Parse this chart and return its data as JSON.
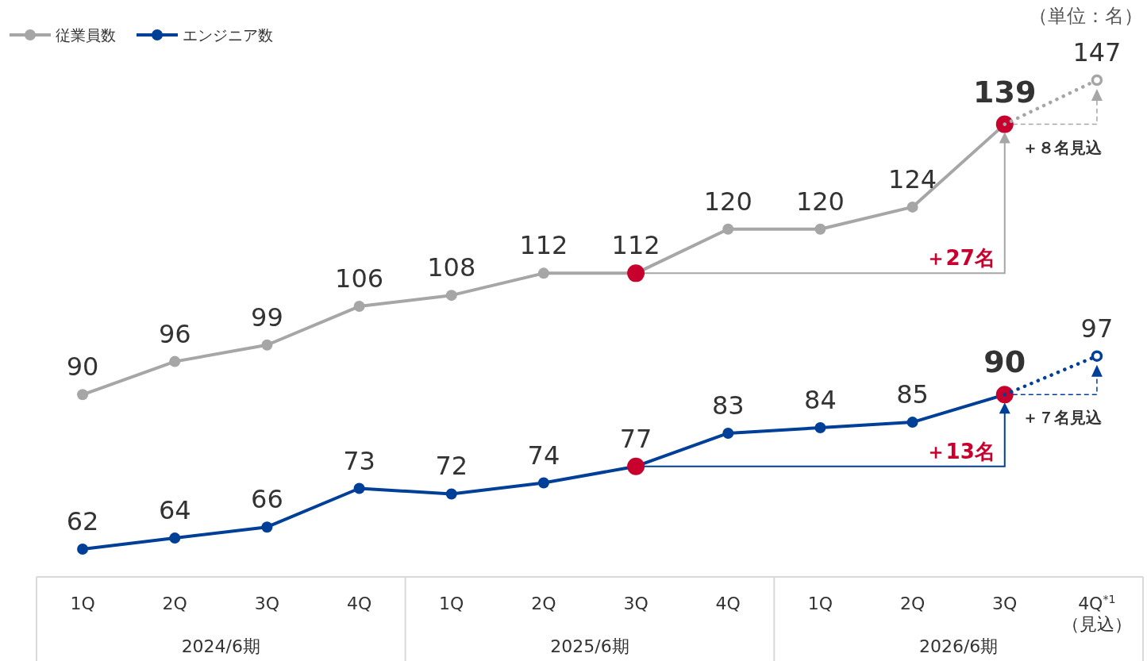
{
  "chart_data": {
    "type": "line",
    "categories": [
      "1Q",
      "2Q",
      "3Q",
      "4Q",
      "1Q",
      "2Q",
      "3Q",
      "4Q",
      "1Q",
      "2Q",
      "3Q",
      "4Q$^{*1}$\n（見込）"
    ],
    "series": [
      {
        "name": "従業員数",
        "color": "#a6a6a6",
        "values": [
          90,
          96,
          99,
          106,
          108,
          112,
          112,
          120,
          120,
          124,
          139,
          null
        ],
        "colors": [
          "#a6a6a6",
          "#a6a6a6",
          "#a6a6a6",
          "#a6a6a6",
          "#a6a6a6",
          "#a6a6a6",
          "#c8002d",
          "#a6a6a6",
          "#a6a6a6",
          "#a6a6a6",
          "#c8002d",
          null
        ],
        "value_labels": [
          "90",
          "96",
          "99",
          "106",
          "108",
          "112",
          "112",
          "120",
          "120",
          "124",
          "139",
          null
        ]
      },
      {
        "name": "エンジニア数",
        "color": "#003f98",
        "values": [
          62,
          64,
          66,
          73,
          72,
          74,
          77,
          83,
          84,
          85,
          90,
          null
        ],
        "colors": [
          "#003f98",
          "#003f98",
          "#003f98",
          "#003f98",
          "#003f98",
          "#003f98",
          "#c8002d",
          "#003f98",
          "#003f98",
          "#003f98",
          "#c8002d",
          null
        ],
        "value_labels": [
          "62",
          "64",
          "66",
          "73",
          "72",
          "74",
          "77",
          "83",
          "84",
          "85",
          "90",
          null
        ]
      },
      {
        "color": "#a6a6a6",
        "line_style": "dotted",
        "values": [
          null,
          null,
          null,
          null,
          null,
          null,
          null,
          null,
          null,
          null,
          139,
          147
        ],
        "value_labels": [
          null,
          null,
          null,
          null,
          null,
          null,
          null,
          null,
          null,
          null,
          null,
          "147"
        ]
      },
      {
        "color": "#003f98",
        "line_style": "dotted",
        "values": [
          null,
          null,
          null,
          null,
          null,
          null,
          null,
          null,
          null,
          null,
          90,
          97
        ],
        "value_labels": [
          null,
          null,
          null,
          null,
          null,
          null,
          null,
          null,
          null,
          null,
          null,
          "97"
        ]
      }
    ],
    "annotations": [
      "（単位：名）",
      "2024/6期",
      "2025/6期",
      "2026/6期",
      "＋27名",
      "＋13名",
      "＋８名見込",
      "＋７名見込"
    ],
    "tick_labels": "x",
    "marker": "circle",
    "legend": "top left"
  }
}
